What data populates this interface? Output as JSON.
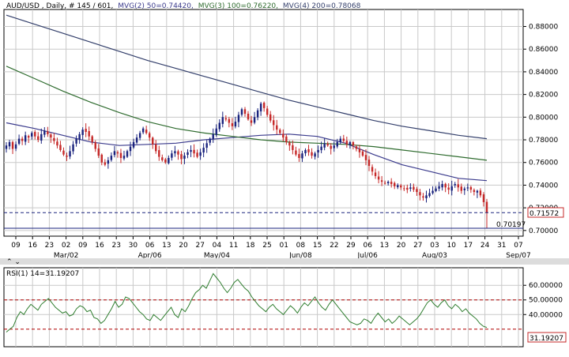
{
  "header": {
    "title": "AUD/USD , Daily, # 145 / 601,",
    "mvg2": "MVG(2) 50=0.74420,",
    "mvg3": "MVG(3) 100=0.76220,",
    "mvg4": "MVG(4) 200=0.78068"
  },
  "price_labels": {
    "last": "0.71572",
    "low": "0.70197"
  },
  "rsi_header": "RSI(1) 14=31.19207",
  "rsi_value_label": "31.19207",
  "x_axis": {
    "day_labels": [
      "09",
      "16",
      "23",
      "02",
      "09",
      "16",
      "23",
      "30",
      "06",
      "13",
      "20",
      "27",
      "04",
      "11",
      "18",
      "25",
      "01",
      "08",
      "15",
      "22",
      "29",
      "06",
      "13",
      "20",
      "27",
      "03",
      "10",
      "17",
      "24",
      "31",
      "07"
    ],
    "month_labels": [
      "Mar/02",
      "Apr/06",
      "May/04",
      "Jun/08",
      "Jul/06",
      "Aug/03",
      "Sep/07"
    ]
  },
  "chart_data": [
    {
      "type": "candlestick",
      "symbol": "AUD/USD",
      "timeframe": "Daily",
      "ylim": [
        0.695,
        0.895
      ],
      "yticks": [
        0.7,
        0.72,
        0.74,
        0.76,
        0.78,
        0.8,
        0.82,
        0.84,
        0.86,
        0.88
      ],
      "ytick_labels": [
        "0.70000",
        "0.72000",
        "0.74000",
        "0.76000",
        "0.78000",
        "0.80000",
        "0.82000",
        "0.84000",
        "0.86000",
        "0.88000"
      ],
      "close_path": [
        0.775,
        0.778,
        0.772,
        0.776,
        0.781,
        0.779,
        0.784,
        0.782,
        0.786,
        0.783,
        0.78,
        0.785,
        0.788,
        0.785,
        0.782,
        0.779,
        0.775,
        0.771,
        0.767,
        0.765,
        0.77,
        0.776,
        0.781,
        0.785,
        0.789,
        0.787,
        0.783,
        0.778,
        0.772,
        0.766,
        0.76,
        0.758,
        0.762,
        0.766,
        0.77,
        0.768,
        0.764,
        0.766,
        0.77,
        0.774,
        0.778,
        0.782,
        0.786,
        0.79,
        0.786,
        0.782,
        0.776,
        0.77,
        0.765,
        0.762,
        0.76,
        0.764,
        0.768,
        0.77,
        0.767,
        0.763,
        0.766,
        0.769,
        0.771,
        0.768,
        0.765,
        0.769,
        0.773,
        0.777,
        0.781,
        0.785,
        0.79,
        0.795,
        0.8,
        0.798,
        0.795,
        0.792,
        0.796,
        0.802,
        0.807,
        0.803,
        0.798,
        0.795,
        0.8,
        0.806,
        0.812,
        0.808,
        0.802,
        0.797,
        0.793,
        0.789,
        0.786,
        0.782,
        0.778,
        0.775,
        0.771,
        0.767,
        0.764,
        0.768,
        0.771,
        0.769,
        0.766,
        0.768,
        0.771,
        0.774,
        0.777,
        0.775,
        0.772,
        0.775,
        0.778,
        0.781,
        0.779,
        0.776,
        0.778,
        0.775,
        0.772,
        0.769,
        0.766,
        0.762,
        0.757,
        0.752,
        0.748,
        0.745,
        0.743,
        0.742,
        0.743,
        0.741,
        0.739,
        0.74,
        0.738,
        0.737,
        0.736,
        0.738,
        0.736,
        0.734,
        0.731,
        0.729,
        0.731,
        0.733,
        0.735,
        0.737,
        0.739,
        0.741,
        0.738,
        0.736,
        0.739,
        0.741,
        0.738,
        0.735,
        0.737,
        0.738,
        0.736,
        0.734,
        0.735,
        0.731,
        0.725,
        0.7157
      ],
      "last_price": 0.71572,
      "low_price": 0.70197,
      "moving_averages": [
        {
          "name": "MVG(2) 50",
          "value": 0.7442,
          "color": "#3a3a8c",
          "path": [
            0.795,
            0.79,
            0.784,
            0.778,
            0.775,
            0.776,
            0.777,
            0.78,
            0.782,
            0.784,
            0.785,
            0.783,
            0.777,
            0.767,
            0.758,
            0.752,
            0.746,
            0.744
          ]
        },
        {
          "name": "MVG(3) 100",
          "value": 0.7622,
          "color": "#2e6b2e",
          "path": [
            0.845,
            0.834,
            0.823,
            0.813,
            0.804,
            0.796,
            0.79,
            0.786,
            0.783,
            0.78,
            0.778,
            0.777,
            0.776,
            0.774,
            0.771,
            0.768,
            0.765,
            0.762
          ]
        },
        {
          "name": "MVG(4) 200",
          "value": 0.78068,
          "color": "#333f6b",
          "path": [
            0.89,
            0.882,
            0.874,
            0.866,
            0.858,
            0.85,
            0.843,
            0.836,
            0.829,
            0.822,
            0.815,
            0.809,
            0.803,
            0.797,
            0.792,
            0.788,
            0.784,
            0.781
          ]
        }
      ]
    },
    {
      "type": "line",
      "name": "RSI(1) 14",
      "value": 31.19207,
      "ylim": [
        18,
        72
      ],
      "yticks": [
        40,
        50,
        60
      ],
      "ytick_labels": [
        "40.00000",
        "50.00000",
        "60.00000"
      ],
      "reference_lines": [
        30,
        50
      ],
      "line_color": "#2e7d2e",
      "values": [
        28,
        30,
        32,
        38,
        42,
        40,
        44,
        47,
        45,
        43,
        47,
        49,
        51,
        48,
        45,
        43,
        41,
        42,
        39,
        40,
        44,
        46,
        45,
        42,
        43,
        38,
        37,
        34,
        36,
        40,
        44,
        49,
        45,
        47,
        52,
        51,
        48,
        45,
        42,
        40,
        37,
        36,
        40,
        38,
        36,
        39,
        42,
        45,
        40,
        38,
        44,
        42,
        46,
        51,
        55,
        57,
        60,
        58,
        63,
        68,
        65,
        62,
        58,
        55,
        58,
        62,
        64,
        61,
        58,
        56,
        52,
        49,
        46,
        44,
        42,
        45,
        47,
        44,
        42,
        40,
        43,
        46,
        44,
        41,
        45,
        48,
        46,
        49,
        52,
        48,
        45,
        43,
        47,
        50,
        47,
        44,
        41,
        38,
        35,
        34,
        33,
        34,
        37,
        36,
        34,
        38,
        41,
        38,
        35,
        37,
        34,
        36,
        39,
        37,
        35,
        33,
        35,
        37,
        40,
        44,
        48,
        50,
        47,
        45,
        48,
        50,
        46,
        44,
        47,
        45,
        42,
        44,
        41,
        39,
        37,
        34,
        32,
        31.19
      ]
    }
  ],
  "colors": {
    "bull": "#1a237e",
    "bear": "#c62828",
    "dashed_line": "#1a237e",
    "rsi_ref": "#b00000",
    "grid": "#c9c9c9",
    "frame": "#000000"
  }
}
